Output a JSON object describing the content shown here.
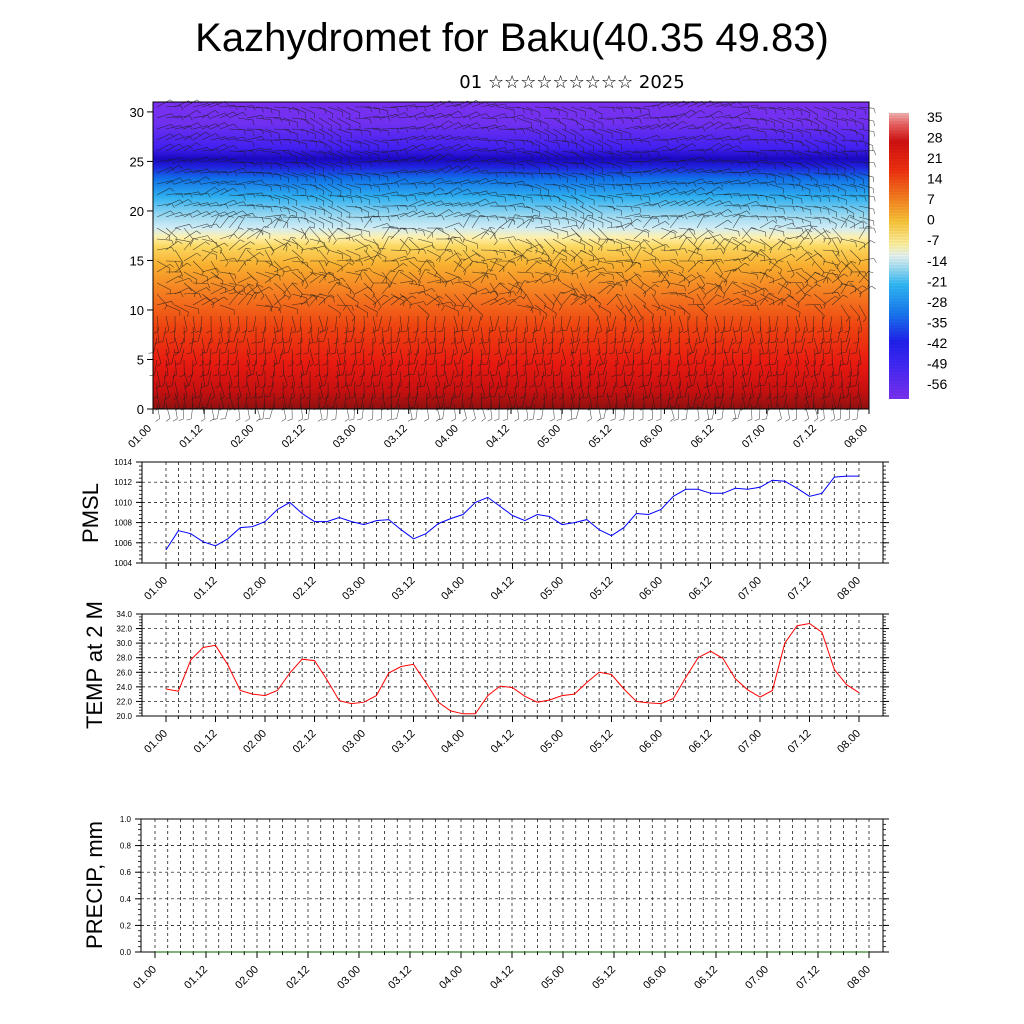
{
  "title": "Kazhydromet for Baku(40.35 49.83)",
  "subtitle": "01 ☆☆☆☆☆☆☆☆☆ 2025",
  "chart_data": [
    {
      "type": "heatmap",
      "name": "cross-section",
      "x_ticks": [
        "01.00",
        "01.12",
        "02.00",
        "02.12",
        "03.00",
        "03.12",
        "04.00",
        "04.12",
        "05.00",
        "05.12",
        "06.00",
        "06.12",
        "07.00",
        "07.12",
        "08.00"
      ],
      "y_ticks": [
        0,
        5,
        10,
        15,
        20,
        25,
        30
      ],
      "ylim": [
        0,
        31
      ],
      "colorbar": {
        "labels": [
          "35",
          "28",
          "21",
          "14",
          "7",
          "0",
          "-7",
          "-14",
          "-21",
          "-28",
          "-35",
          "-42",
          "-49",
          "-56"
        ],
        "range": [
          -63,
          42
        ]
      },
      "wind_barbs": true
    },
    {
      "type": "line",
      "ylabel": "PMSL",
      "x_ticks": [
        "01.00",
        "01.12",
        "02.00",
        "02.12",
        "03.00",
        "03.12",
        "04.00",
        "04.12",
        "05.00",
        "05.12",
        "06.00",
        "06.12",
        "07.00",
        "07.12",
        "08.00"
      ],
      "y_ticks": [
        "1004",
        "1006",
        "1008",
        "1010",
        "1012",
        "1014"
      ],
      "ylim": [
        1004,
        1014
      ],
      "series": [
        {
          "color": "#0000ff",
          "values": [
            1005.3,
            1007.2,
            1006.9,
            1006.1,
            1005.7,
            1006.4,
            1007.5,
            1007.6,
            1008.1,
            1009.3,
            1010.0,
            1008.9,
            1008.1,
            1008.1,
            1008.5,
            1008.1,
            1007.8,
            1008.2,
            1008.3,
            1007.3,
            1006.4,
            1006.9,
            1007.9,
            1008.4,
            1008.8,
            1010.0,
            1010.5,
            1009.6,
            1008.7,
            1008.2,
            1008.8,
            1008.6,
            1007.8,
            1008.0,
            1008.3,
            1007.3,
            1006.7,
            1007.5,
            1008.9,
            1008.8,
            1009.3,
            1010.6,
            1011.3,
            1011.3,
            1010.9,
            1010.9,
            1011.4,
            1011.3,
            1011.5,
            1012.2,
            1012.1,
            1011.4,
            1010.6,
            1010.9,
            1012.5,
            1012.6,
            1012.6
          ]
        }
      ],
      "grid": true
    },
    {
      "type": "line",
      "ylabel": "TEMP at 2 M",
      "x_ticks": [
        "01.00",
        "01.12",
        "02.00",
        "02.12",
        "03.00",
        "03.12",
        "04.00",
        "04.12",
        "05.00",
        "05.12",
        "06.00",
        "06.12",
        "07.00",
        "07.12",
        "08.00"
      ],
      "y_ticks": [
        "20.0",
        "22.0",
        "24.0",
        "26.0",
        "28.0",
        "30.0",
        "32.0",
        "34.0"
      ],
      "ylim": [
        20,
        34
      ],
      "series": [
        {
          "color": "#ff0000",
          "values": [
            23.7,
            23.4,
            27.7,
            29.4,
            29.7,
            27.0,
            23.5,
            23.0,
            22.8,
            23.5,
            25.9,
            27.8,
            27.6,
            25.0,
            22.1,
            21.7,
            21.9,
            22.8,
            25.9,
            26.8,
            27.1,
            24.6,
            21.9,
            20.7,
            20.3,
            20.3,
            22.8,
            24.1,
            23.9,
            22.7,
            21.9,
            22.2,
            22.8,
            23.0,
            24.6,
            26.0,
            25.7,
            23.7,
            22.0,
            21.8,
            21.7,
            22.4,
            25.3,
            28.0,
            28.9,
            27.9,
            25.1,
            23.6,
            22.6,
            23.5,
            30.0,
            32.4,
            32.7,
            31.5,
            26.4,
            24.3,
            23.2
          ]
        }
      ],
      "grid": true
    },
    {
      "type": "line",
      "ylabel": "PRECIP, mm",
      "x_ticks": [
        "01.00",
        "01.12",
        "02.00",
        "02.12",
        "03.00",
        "03.12",
        "04.00",
        "04.12",
        "05.00",
        "05.12",
        "06.00",
        "06.12",
        "07.00",
        "07.12",
        "08.00"
      ],
      "y_ticks": [
        "0.0",
        "0.2",
        "0.4",
        "0.6",
        "0.8",
        "1.0"
      ],
      "ylim": [
        0,
        1
      ],
      "series": [
        {
          "color": "#006400",
          "values": [
            0,
            0,
            0,
            0,
            0,
            0,
            0,
            0,
            0,
            0,
            0,
            0,
            0,
            0,
            0,
            0,
            0,
            0,
            0,
            0,
            0,
            0,
            0,
            0,
            0,
            0,
            0,
            0,
            0,
            0,
            0,
            0,
            0,
            0,
            0,
            0,
            0,
            0,
            0,
            0,
            0,
            0,
            0,
            0,
            0,
            0,
            0,
            0,
            0,
            0,
            0,
            0,
            0,
            0,
            0,
            0,
            0
          ]
        }
      ],
      "grid": true
    }
  ]
}
